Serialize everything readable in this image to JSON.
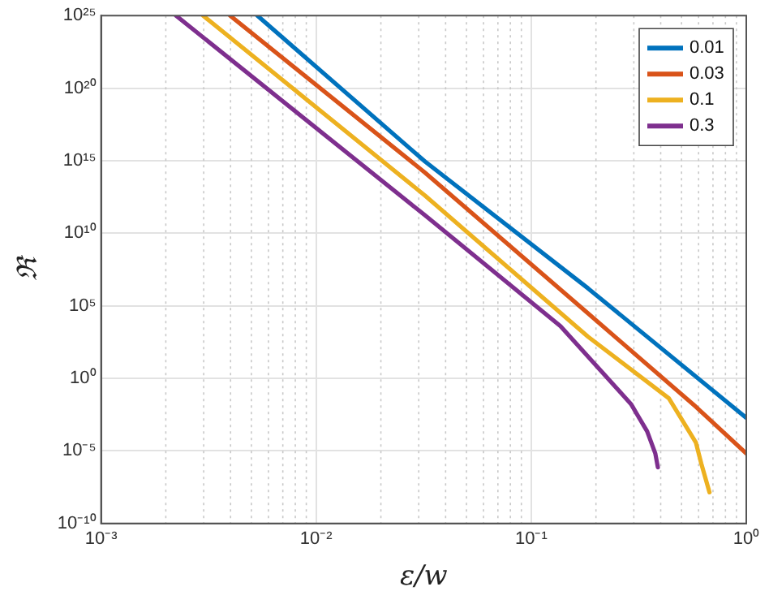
{
  "chart_data": {
    "type": "line",
    "xlabel": "ε/w",
    "ylabel": "ℜ",
    "log": "xy",
    "grid": true,
    "legend": "top right",
    "line_style": "solid",
    "marker": "none",
    "xlim": [
      0.001,
      1
    ],
    "xticks": [
      {
        "value": 0.001,
        "label": "10⁻³"
      },
      {
        "value": 0.01,
        "label": "10⁻²"
      },
      {
        "value": 0.1,
        "label": "10⁻¹"
      },
      {
        "value": 1,
        "label": "10⁰"
      }
    ],
    "ylim": [
      1e-10,
      1e+25
    ],
    "yticks": [
      {
        "value": 1e-10,
        "label": "10⁻¹⁰"
      },
      {
        "value": 1e-05,
        "label": "10⁻⁵"
      },
      {
        "value": 1,
        "label": "10⁰"
      },
      {
        "value": 100000.0,
        "label": "10⁵"
      },
      {
        "value": 10000000000.0,
        "label": "10¹⁰"
      },
      {
        "value": 1000000000000000.0,
        "label": "10¹⁵"
      },
      {
        "value": 1e+20,
        "label": "10²⁰"
      },
      {
        "value": 1e+25,
        "label": "10²⁵"
      }
    ],
    "series": [
      {
        "name": "0.01",
        "color": "#0072bd",
        "x": [
          0.00533,
          0.0321,
          0.1837,
          1
        ],
        "values": [
          1e+25,
          870000000000000.0,
          1600000.0,
          0.0019
        ]
      },
      {
        "name": "0.03",
        "color": "#d95319",
        "x": [
          0.00398,
          0.0321,
          0.1837,
          0.583,
          1
        ],
        "values": [
          1e+25,
          150000000000000.0,
          30000.0,
          0.011,
          6.6e-06
        ]
      },
      {
        "name": "0.1",
        "color": "#edb120",
        "x": [
          0.00298,
          0.0321,
          0.1837,
          0.4365,
          0.583,
          0.618,
          0.6745
        ],
        "values": [
          1e+25,
          3900000000000.0,
          740,
          0.042,
          3.8e-05,
          1.3e-06,
          1.4e-08
        ]
      },
      {
        "name": "0.3",
        "color": "#7e2f8e",
        "x": [
          0.00223,
          0.0321,
          0.1368,
          0.291,
          0.346,
          0.3776,
          0.388
        ],
        "values": [
          1e+25,
          170000000000.0,
          4000,
          0.017,
          0.00022,
          6.6e-06,
          7.4e-07
        ]
      }
    ]
  }
}
